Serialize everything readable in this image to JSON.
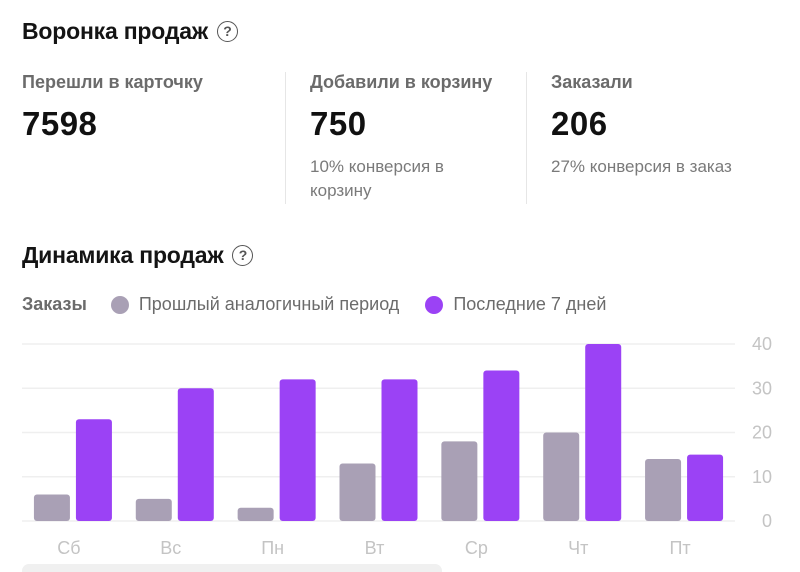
{
  "funnel": {
    "title": "Воронка продаж",
    "metrics": [
      {
        "label": "Перешли в карточку",
        "value": "7598",
        "note": ""
      },
      {
        "label": "Добавили в корзину",
        "value": "750",
        "note": "10% конверсия в корзину"
      },
      {
        "label": "Заказали",
        "value": "206",
        "note": "27% конверсия в заказ"
      }
    ]
  },
  "dynamics": {
    "title": "Динамика продаж",
    "legend_title": "Заказы",
    "help_icon": "help-circle-icon"
  },
  "chart_data": {
    "type": "bar",
    "categories": [
      "Сб",
      "Вс",
      "Пн",
      "Вт",
      "Ср",
      "Чт",
      "Пт"
    ],
    "series": [
      {
        "name": "Прошлый аналогичный период",
        "color": "#a9a0b5",
        "values": [
          6,
          5,
          3,
          13,
          18,
          20,
          14
        ]
      },
      {
        "name": "Последние 7 дней",
        "color": "#9b42f5",
        "values": [
          23,
          30,
          32,
          32,
          34,
          40,
          15
        ]
      }
    ],
    "yticks": [
      0,
      10,
      20,
      30,
      40
    ],
    "ylim": [
      0,
      40
    ],
    "grid": true,
    "y_axis_side": "right"
  }
}
